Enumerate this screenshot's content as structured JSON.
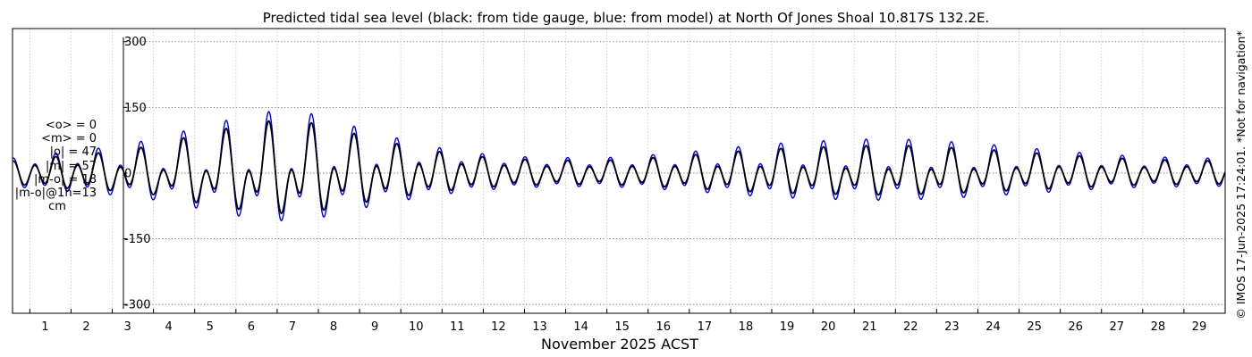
{
  "chart_data": {
    "type": "line",
    "title": "Predicted tidal sea level (black: from tide gauge, blue: from model) at North Of Jones Shoal 10.817S 132.2E.",
    "xlabel": "November 2025 ACST",
    "ylabel": "",
    "x_units": "day of month",
    "xlim": [
      0.58,
      30.0
    ],
    "ylim": [
      -320,
      330
    ],
    "y_ticks": [
      300,
      150,
      0,
      -150,
      -300
    ],
    "y_tick_labels": [
      "300",
      "150",
      "0",
      "-150",
      "-300"
    ],
    "x_tick_labels": [
      "1",
      "2",
      "3",
      "4",
      "5",
      "6",
      "7",
      "8",
      "9",
      "10",
      "11",
      "12",
      "13",
      "14",
      "15",
      "16",
      "17",
      "18",
      "19",
      "20",
      "21",
      "22",
      "23",
      "24",
      "25",
      "26",
      "27",
      "28",
      "29"
    ],
    "grid": true,
    "series": [
      {
        "name": "tide gauge (observed)",
        "color": "#000000",
        "sampling": "daily tidal envelope: mean, diurnal and semidiurnal amplitude (cm)",
        "day": [
          0.6,
          1,
          2,
          3,
          4,
          5,
          6,
          6.6,
          7,
          7.6,
          8,
          8.5,
          9,
          10,
          11,
          12,
          13,
          14,
          15,
          16,
          17,
          18,
          19,
          20,
          21,
          22,
          23,
          24,
          25,
          26,
          27,
          28,
          29,
          30
        ],
        "mean": [
          0,
          0,
          0,
          0,
          0,
          0,
          0,
          0,
          0,
          0,
          0,
          0,
          0,
          0,
          0,
          0,
          0,
          0,
          0,
          0,
          0,
          0,
          0,
          0,
          0,
          0,
          0,
          0,
          0,
          0,
          0,
          0,
          0,
          0
        ],
        "diurnal_amp": [
          6,
          8,
          12,
          18,
          30,
          45,
          55,
          62,
          62,
          60,
          56,
          48,
          40,
          25,
          14,
          10,
          8,
          8,
          8,
          10,
          14,
          18,
          22,
          25,
          28,
          30,
          28,
          25,
          20,
          15,
          12,
          10,
          8,
          6
        ],
        "semidiurnal_amp": [
          22,
          25,
          30,
          32,
          35,
          45,
          55,
          60,
          62,
          62,
          60,
          55,
          50,
          42,
          35,
          28,
          24,
          22,
          22,
          25,
          28,
          32,
          35,
          36,
          36,
          36,
          34,
          32,
          30,
          28,
          25,
          22,
          22,
          22
        ]
      },
      {
        "name": "model",
        "color": "#0000dd",
        "sampling": "daily tidal envelope: mean, diurnal and semidiurnal amplitude (cm)",
        "day": [
          0.6,
          1,
          2,
          3,
          4,
          5,
          6,
          6.6,
          7,
          7.6,
          8,
          8.5,
          9,
          10,
          11,
          12,
          13,
          14,
          15,
          16,
          17,
          18,
          19,
          20,
          21,
          22,
          23,
          24,
          25,
          26,
          27,
          28,
          29,
          30
        ],
        "mean": [
          0,
          0,
          0,
          0,
          0,
          0,
          0,
          0,
          0,
          0,
          0,
          0,
          0,
          0,
          0,
          0,
          0,
          0,
          0,
          0,
          0,
          0,
          0,
          0,
          0,
          0,
          0,
          0,
          0,
          0,
          0,
          0,
          0,
          0
        ],
        "diurnal_amp": [
          7,
          10,
          15,
          22,
          36,
          52,
          64,
          72,
          72,
          70,
          65,
          56,
          46,
          30,
          16,
          11,
          9,
          9,
          9,
          12,
          16,
          20,
          25,
          30,
          33,
          35,
          33,
          30,
          24,
          18,
          14,
          12,
          9,
          7
        ],
        "semidiurnal_amp": [
          28,
          30,
          36,
          40,
          44,
          54,
          66,
          72,
          74,
          74,
          72,
          66,
          60,
          50,
          42,
          34,
          29,
          27,
          27,
          30,
          34,
          40,
          44,
          45,
          46,
          46,
          43,
          40,
          37,
          34,
          30,
          27,
          27,
          27
        ]
      }
    ],
    "annotations": {
      "mean_obs": "<o> = 0",
      "mean_model": "<m> = 0",
      "abs_obs": "|o| = 47",
      "abs_model": "|m| = 57",
      "abs_diff": "|m-o| = 18",
      "abs_diff_1h": "|m-o|@1h=13",
      "units": "cm"
    },
    "credit": "© IMOS 17-Jun-2025 17:24:01. *Not for navigation*"
  }
}
